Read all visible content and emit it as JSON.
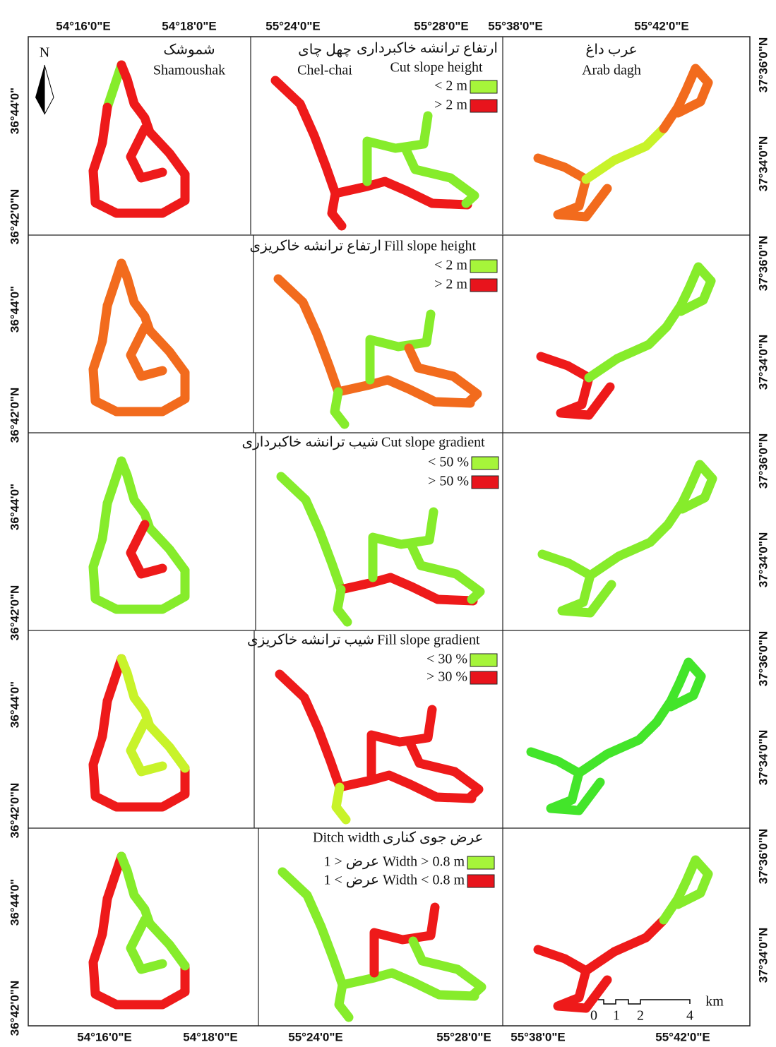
{
  "axes": {
    "top": [
      "54°16'0\"E",
      "54°18'0\"E",
      "55°24'0\"E",
      "55°28'0\"E",
      "55°38'0\"E",
      "55°42'0\"E"
    ],
    "bottom": [
      "54°16'0\"E",
      "54°18'0\"E",
      "55°24'0\"E",
      "55°28'0\"E",
      "55°38'0\"E",
      "55°42'0\"E"
    ]
  },
  "columns": [
    {
      "name_fa": "شموشک",
      "name_en": "Shamoushak"
    },
    {
      "name_fa": "چهل چای",
      "name_en": "Chel-chai"
    },
    {
      "name_fa": "عرب داغ",
      "name_en": "Arab dagh"
    }
  ],
  "north": "N",
  "rows": [
    {
      "left": [
        "36°44'0\"",
        "36°42'0\"N"
      ],
      "right": [
        "37°36'0\"N",
        "37°34'0\"N"
      ],
      "legend": {
        "title_fa": "ارتفاع ترانشه خاکبرداری",
        "title_en": "Cut slope height",
        "items": [
          "< 2 m",
          "> 2 m"
        ]
      }
    },
    {
      "left": [
        "36°44'0\"",
        "36°42'0\"N"
      ],
      "right": [
        "37°36'0\"N",
        "37°34'0\"N"
      ],
      "legend": {
        "title_fa": "ارتفاع ترانشه خاکریزی",
        "title_en": "Fill slope height",
        "items": [
          "< 2 m",
          "> 2 m"
        ]
      }
    },
    {
      "left": [
        "36°44'0\"",
        "36°42'0\"N"
      ],
      "right": [
        "37°36'0\"N",
        "37°34'0\"N"
      ],
      "legend": {
        "title_fa": "شیب ترانشه خاکبرداری",
        "title_en": "Cut slope gradient",
        "items": [
          "< 50 %",
          "> 50 %"
        ]
      }
    },
    {
      "left": [
        "36°44'0\"",
        "36°42'0\"N"
      ],
      "right": [
        "37°36'0\"N",
        "37°34'0\"N"
      ],
      "legend": {
        "title_fa": "شیب ترانشه خاکریزی",
        "title_en": "Fill slope gradient",
        "items": [
          "< 30 %",
          "> 30 %"
        ]
      }
    },
    {
      "left": [
        "36°44'0\"",
        "36°42'0\"N"
      ],
      "right": [
        "37°36'0\"N",
        "37°34'0\"N"
      ],
      "legend": {
        "title_fa": "عرض جوی کناری",
        "title_en": "Ditch width",
        "items": [
          "1 > عرض Width > 0.8 m",
          "1 < عرض Width < 0.8 m"
        ]
      }
    }
  ],
  "scale": {
    "labels": [
      "0",
      "1",
      "2",
      "4"
    ],
    "unit": "km"
  }
}
